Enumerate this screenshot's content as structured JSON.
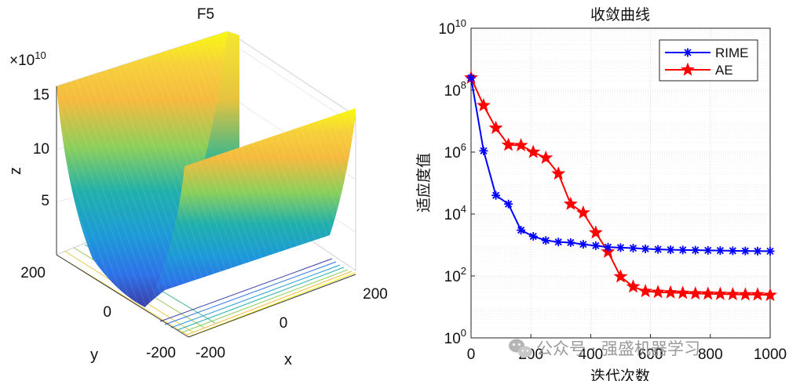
{
  "colors": {
    "series_rime": "#0000ff",
    "series_ae": "#ff0000",
    "surface_top": "#f9fb0e",
    "surface_mid": "#20b0aa",
    "surface_bottom": "#3b3ea8",
    "grid": "#d8d8d8"
  },
  "watermark": {
    "icon": "wechat-icon",
    "text": "公众号 · 强盛机器学习"
  },
  "chart_data": [
    {
      "type": "surface",
      "title": "F5",
      "xlabel": "x",
      "ylabel": "y",
      "zlabel": "z",
      "z_exponent_label": "×10",
      "z_exponent_power": "10",
      "x_ticks": [
        "-200",
        "0",
        "200"
      ],
      "y_ticks": [
        "200",
        "0",
        "-200"
      ],
      "z_ticks": [
        "5",
        "10",
        "15"
      ],
      "xlim": [
        -200,
        200
      ],
      "ylim": [
        -200,
        200
      ],
      "zlim": [
        0,
        16
      ],
      "z_scale": 10000000000.0,
      "grid": true,
      "colormap": "parula",
      "contour_below": true
    },
    {
      "type": "line",
      "title": "收敛曲线",
      "xlabel": "迭代次数",
      "ylabel": "适应度值",
      "yscale": "log",
      "xlim": [
        0,
        1000
      ],
      "ylim": [
        1,
        10000000000
      ],
      "x_ticks": [
        "0",
        "200",
        "400",
        "600",
        "800",
        "1000"
      ],
      "y_ticks": [
        {
          "base": "10",
          "power": "0",
          "value": 1
        },
        {
          "base": "10",
          "power": "2",
          "value": 100
        },
        {
          "base": "10",
          "power": "4",
          "value": 10000
        },
        {
          "base": "10",
          "power": "6",
          "value": 1000000
        },
        {
          "base": "10",
          "power": "8",
          "value": 100000000
        },
        {
          "base": "10",
          "power": "10",
          "value": 10000000000
        }
      ],
      "grid": true,
      "minor_grid": true,
      "legend_position": "top-right",
      "x": [
        0,
        42,
        83,
        125,
        167,
        208,
        250,
        292,
        333,
        375,
        417,
        458,
        500,
        542,
        583,
        625,
        667,
        708,
        750,
        792,
        833,
        875,
        917,
        958,
        1000
      ],
      "series": [
        {
          "name": "RIME",
          "marker": "asterisk",
          "values": [
            250000000,
            1100000,
            40000,
            21000,
            3000,
            1900,
            1400,
            1250,
            1200,
            1050,
            950,
            850,
            820,
            790,
            750,
            720,
            700,
            690,
            680,
            670,
            660,
            650,
            640,
            635,
            630
          ]
        },
        {
          "name": "AE",
          "marker": "star",
          "values": [
            250000000,
            32000000,
            6000000,
            1700000,
            1650000,
            1000000,
            650000,
            200000,
            21000,
            11000,
            2500,
            600,
            95,
            45,
            32,
            30,
            29,
            28,
            27,
            26.5,
            26,
            25.5,
            25,
            25,
            24
          ]
        }
      ]
    }
  ]
}
